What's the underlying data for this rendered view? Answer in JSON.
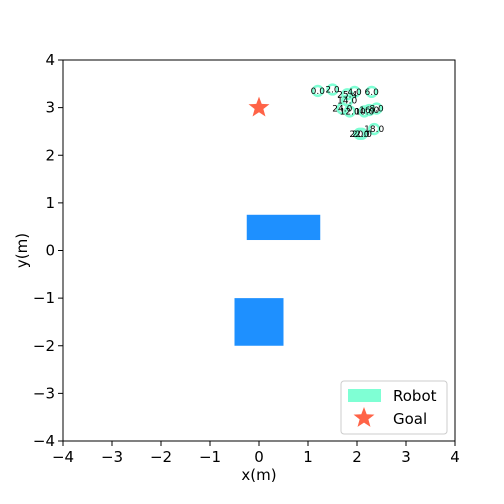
{
  "chart_data": {
    "type": "scatter",
    "title": "",
    "xlabel": "x(m)",
    "ylabel": "y(m)",
    "xlim": [
      -4,
      4
    ],
    "ylim": [
      -4,
      4
    ],
    "xticks": [
      "−4",
      "−3",
      "−2",
      "−1",
      "0",
      "1",
      "2",
      "3",
      "4"
    ],
    "yticks": [
      "−4",
      "−3",
      "−2",
      "−1",
      "0",
      "1",
      "2",
      "3",
      "4"
    ],
    "grid": false,
    "legend_placement": "lower-right",
    "legend": [
      {
        "label": "Robot",
        "color": "#7fffd4",
        "marker": "circle"
      },
      {
        "label": "Goal",
        "color": "#ff6347",
        "marker": "star"
      }
    ],
    "goal": {
      "x": 0.0,
      "y": 3.0,
      "color": "#ff6347"
    },
    "obstacles": [
      {
        "x": -0.25,
        "y": 0.22,
        "width": 1.5,
        "height": 0.53,
        "color": "#1e90ff"
      },
      {
        "x": -0.5,
        "y": -2.0,
        "width": 1.0,
        "height": 1.0,
        "color": "#1e90ff"
      }
    ],
    "robot_trajectory": {
      "color": "#7fffd4",
      "radius": 0.1,
      "points": [
        {
          "x": 1.2,
          "y": 3.35,
          "t": "0.0"
        },
        {
          "x": 1.5,
          "y": 3.38,
          "t": "2.0"
        },
        {
          "x": 1.95,
          "y": 3.33,
          "t": "4.0"
        },
        {
          "x": 2.3,
          "y": 3.33,
          "t": "6.0"
        },
        {
          "x": 2.4,
          "y": 2.98,
          "t": "8.0"
        },
        {
          "x": 2.15,
          "y": 2.92,
          "t": "10.0"
        },
        {
          "x": 1.85,
          "y": 2.92,
          "t": "12.0"
        },
        {
          "x": 1.8,
          "y": 3.15,
          "t": "14.0"
        },
        {
          "x": 2.25,
          "y": 2.95,
          "t": "16.0"
        },
        {
          "x": 2.35,
          "y": 2.55,
          "t": "18.0"
        },
        {
          "x": 2.1,
          "y": 2.45,
          "t": "20.0"
        },
        {
          "x": 2.05,
          "y": 2.45,
          "t": "22.0"
        },
        {
          "x": 1.7,
          "y": 2.98,
          "t": "24.0"
        },
        {
          "x": 1.8,
          "y": 3.28,
          "t": "25.4"
        }
      ]
    }
  }
}
